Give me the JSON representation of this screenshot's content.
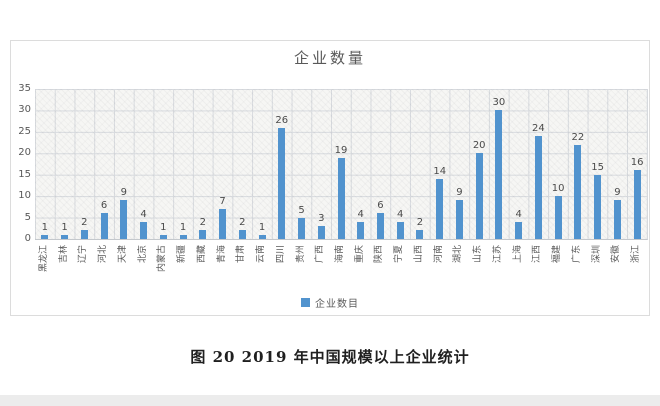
{
  "page": {
    "caption": "图 20 2019 年中国规模以上企业统计"
  },
  "chart_data": {
    "type": "bar",
    "title": "企业数量",
    "legend": [
      "企业数目"
    ],
    "legend_position": "bottom",
    "categories": [
      "黑龙江",
      "吉林",
      "辽宁",
      "河北",
      "天津",
      "北京",
      "内蒙古",
      "新疆",
      "西藏",
      "青海",
      "甘肃",
      "云南",
      "四川",
      "贵州",
      "广西",
      "海南",
      "重庆",
      "陕西",
      "宁夏",
      "山西",
      "河南",
      "湖北",
      "山东",
      "江苏",
      "上海",
      "江西",
      "福建",
      "广东",
      "深圳",
      "安徽",
      "浙江"
    ],
    "values": [
      1,
      1,
      2,
      6,
      9,
      4,
      1,
      1,
      2,
      7,
      2,
      1,
      26,
      5,
      3,
      19,
      4,
      6,
      4,
      2,
      14,
      9,
      20,
      30,
      4,
      24,
      10,
      22,
      15,
      9,
      16
    ],
    "data_labels": true,
    "xlabel": "",
    "ylabel": "",
    "ylim": [
      0,
      35
    ],
    "yticks": [
      0,
      5,
      10,
      15,
      20,
      25,
      30,
      35
    ],
    "grid": "both",
    "bar_color": "#5193ce",
    "text_color": "#595959"
  }
}
